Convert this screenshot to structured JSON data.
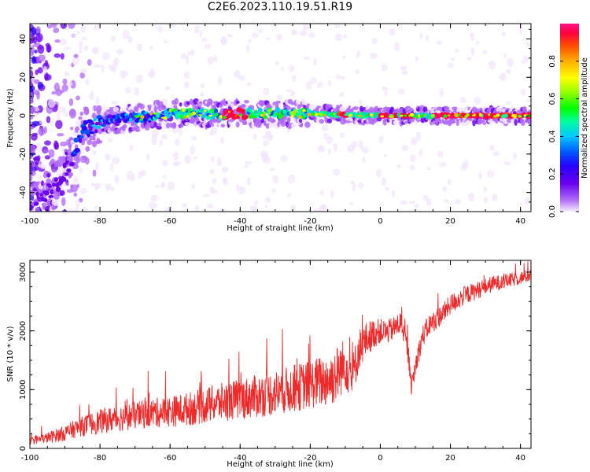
{
  "figure": {
    "title": "C2E6.2023.110.19.51.R19"
  },
  "colors": {
    "snr_line": "#ee2a2a",
    "colormap": [
      "#f1e6fb",
      "#b06af7",
      "#6a00f0",
      "#2a00ff",
      "#0055ff",
      "#00c8ff",
      "#00ff9c",
      "#00ff00",
      "#8cff00",
      "#ffff00",
      "#ffb000",
      "#ff5000",
      "#ff0040",
      "#ff1488"
    ]
  },
  "chart_data": [
    {
      "type": "heatmap",
      "title": "C2E6.2023.110.19.51.R19",
      "xlabel": "Height of straight line (km)",
      "ylabel": "Frequency (Hz)",
      "xlim": [
        -100,
        43
      ],
      "ylim": [
        -50,
        48
      ],
      "xticks": [
        -100,
        -80,
        -60,
        -40,
        -20,
        0,
        20,
        40
      ],
      "yticks": [
        -40,
        -20,
        0,
        20,
        40
      ],
      "colorbar": {
        "label": "Normalized spectral amplitude",
        "range": [
          0.0,
          1.0
        ],
        "ticks": [
          0.0,
          0.2,
          0.4,
          0.6,
          0.8
        ]
      },
      "ridge": {
        "description_points": [
          {
            "height_km": -100,
            "freq_hz": -48
          },
          {
            "height_km": -92,
            "freq_hz": -35
          },
          {
            "height_km": -88,
            "freq_hz": -22
          },
          {
            "height_km": -85,
            "freq_hz": -8
          },
          {
            "height_km": -80,
            "freq_hz": -3
          },
          {
            "height_km": -60,
            "freq_hz": 1
          },
          {
            "height_km": -40,
            "freq_hz": 1
          },
          {
            "height_km": -20,
            "freq_hz": 1
          },
          {
            "height_km": 0,
            "freq_hz": 0
          },
          {
            "height_km": 43,
            "freq_hz": 0
          }
        ],
        "peak_amplitude_segments_km": [
          [
            -45,
            -38
          ],
          [
            -12,
            -9
          ],
          [
            0,
            5
          ],
          [
            6,
            10
          ],
          [
            15,
            43
          ]
        ]
      }
    },
    {
      "type": "line",
      "xlabel": "Height of straight line (km)",
      "ylabel": "SNR (10 * v/v)",
      "xlim": [
        -100,
        43
      ],
      "ylim": [
        0,
        3200
      ],
      "xticks": [
        -100,
        -80,
        -60,
        -40,
        -20,
        0,
        20,
        40
      ],
      "yticks": [
        0,
        1000,
        2000,
        3000
      ],
      "series": [
        {
          "points": [
            [
              -100,
              120
            ],
            [
              -95,
              180
            ],
            [
              -90,
              260
            ],
            [
              -86,
              360
            ],
            [
              -82,
              430
            ],
            [
              -78,
              480
            ],
            [
              -74,
              520
            ],
            [
              -70,
              560
            ],
            [
              -66,
              600
            ],
            [
              -62,
              620
            ],
            [
              -58,
              640
            ],
            [
              -54,
              680
            ],
            [
              -50,
              730
            ],
            [
              -46,
              780
            ],
            [
              -42,
              820
            ],
            [
              -38,
              860
            ],
            [
              -34,
              900
            ],
            [
              -30,
              950
            ],
            [
              -26,
              1000
            ],
            [
              -22,
              1060
            ],
            [
              -18,
              1120
            ],
            [
              -14,
              1180
            ],
            [
              -12,
              1300
            ],
            [
              -10,
              1450
            ],
            [
              -8,
              1200
            ],
            [
              -6,
              1700
            ],
            [
              -4,
              1850
            ],
            [
              -2,
              1950
            ],
            [
              0,
              2000
            ],
            [
              2,
              1980
            ],
            [
              4,
              2050
            ],
            [
              6,
              2150
            ],
            [
              8,
              1600
            ],
            [
              9,
              1050
            ],
            [
              10,
              1400
            ],
            [
              12,
              1900
            ],
            [
              14,
              2100
            ],
            [
              16,
              2200
            ],
            [
              18,
              2300
            ],
            [
              20,
              2450
            ],
            [
              24,
              2600
            ],
            [
              28,
              2700
            ],
            [
              32,
              2800
            ],
            [
              36,
              2850
            ],
            [
              40,
              2900
            ],
            [
              43,
              2950
            ]
          ],
          "spread": [
            [
              -100,
              80
            ],
            [
              -80,
              300
            ],
            [
              -60,
              380
            ],
            [
              -40,
              500
            ],
            [
              -20,
              600
            ],
            [
              -12,
              700
            ],
            [
              0,
              300
            ],
            [
              20,
              250
            ],
            [
              43,
              150
            ]
          ]
        }
      ]
    }
  ]
}
